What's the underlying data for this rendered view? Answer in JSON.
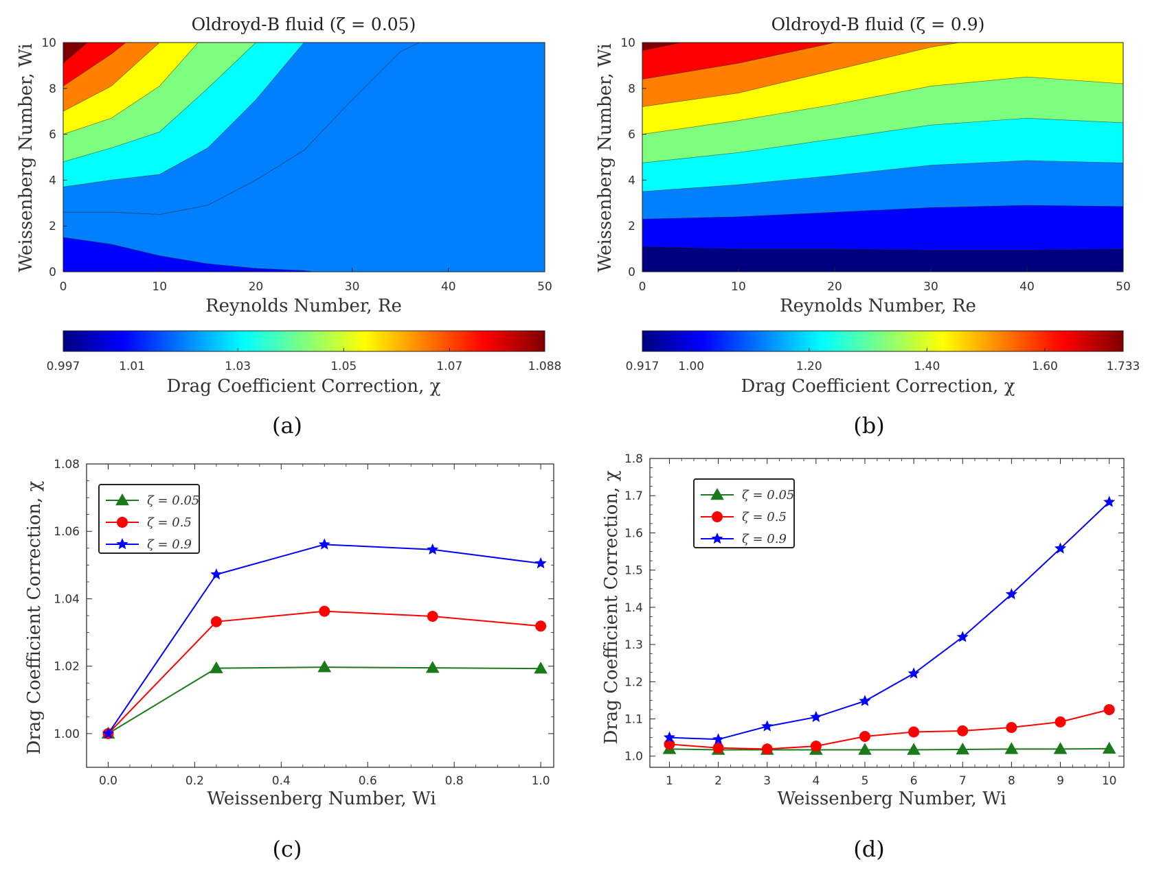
{
  "panel_labels": {
    "a": "(a)",
    "b": "(b)",
    "c": "(c)",
    "d": "(d)"
  },
  "colormap": [
    "#00007f",
    "#0000ff",
    "#007fff",
    "#00ffff",
    "#7fff7f",
    "#ffff00",
    "#ff7f00",
    "#ff0000",
    "#7f0000"
  ],
  "chart_data": [
    {
      "id": "a",
      "type": "contour",
      "title": "Oldroyd-B fluid (ζ = 0.05)",
      "xlabel": "Reynolds Number, Re",
      "ylabel": "Weissenberg Number, Wi",
      "xlim": [
        0,
        50
      ],
      "ylim": [
        0,
        10
      ],
      "xticks": [
        "0",
        "10",
        "20",
        "30",
        "40",
        "50"
      ],
      "yticks": [
        "0",
        "2",
        "4",
        "6",
        "8",
        "10"
      ],
      "background_level": 2,
      "contour_boundaries": [
        {
          "level": 0,
          "points": [
            [
              0,
              0.35
            ],
            [
              5,
              0.1
            ],
            [
              10,
              0
            ]
          ]
        },
        {
          "level": 1,
          "points": [
            [
              0,
              1.5
            ],
            [
              5,
              1.2
            ],
            [
              10,
              0.7
            ],
            [
              15,
              0.35
            ],
            [
              20,
              0.15
            ],
            [
              25,
              0.05
            ],
            [
              26,
              0
            ]
          ]
        },
        {
          "level": 3,
          "points": [
            [
              0,
              3.7
            ],
            [
              5,
              4.0
            ],
            [
              10,
              4.25
            ],
            [
              15,
              5.4
            ],
            [
              20,
              7.5
            ],
            [
              25,
              10
            ]
          ]
        },
        {
          "level": 4,
          "points": [
            [
              0,
              4.8
            ],
            [
              5,
              5.4
            ],
            [
              10,
              6.1
            ],
            [
              15,
              8.0
            ],
            [
              20,
              10
            ]
          ]
        },
        {
          "level": 5,
          "points": [
            [
              0,
              6.0
            ],
            [
              5,
              6.7
            ],
            [
              10,
              8.1
            ],
            [
              14,
              10
            ]
          ]
        },
        {
          "level": 6,
          "points": [
            [
              0,
              7.0
            ],
            [
              5,
              8.1
            ],
            [
              10,
              10
            ]
          ]
        },
        {
          "level": 7,
          "points": [
            [
              0,
              8.1
            ],
            [
              5,
              9.5
            ],
            [
              6.5,
              10
            ]
          ]
        },
        {
          "level": 8,
          "points": [
            [
              0,
              9.1
            ],
            [
              2.5,
              10
            ]
          ]
        }
      ],
      "contour_lines": [
        [
          [
            0,
            2.6
          ],
          [
            5,
            2.6
          ],
          [
            10,
            2.5
          ],
          [
            15,
            2.9
          ],
          [
            20,
            4.0
          ],
          [
            25,
            5.3
          ],
          [
            30,
            7.5
          ],
          [
            35,
            9.6
          ],
          [
            37,
            10
          ]
        ]
      ],
      "colorbar": {
        "label": "Drag Coefficient Correction, χ",
        "range": [
          0.997,
          1.088
        ],
        "ticks": [
          {
            "value": 0.997,
            "label": "0.997"
          },
          {
            "value": 1.01,
            "label": "1.01"
          },
          {
            "value": 1.03,
            "label": "1.03"
          },
          {
            "value": 1.05,
            "label": "1.05"
          },
          {
            "value": 1.07,
            "label": "1.07"
          },
          {
            "value": 1.088,
            "label": "1.088"
          }
        ]
      }
    },
    {
      "id": "b",
      "type": "contour",
      "title": "Oldroyd-B fluid (ζ = 0.9)",
      "xlabel": "Reynolds Number, Re",
      "ylabel": "Weissenberg Number, Wi",
      "xlim": [
        0,
        50
      ],
      "ylim": [
        0,
        10
      ],
      "xticks": [
        "0",
        "10",
        "20",
        "30",
        "40",
        "50"
      ],
      "yticks": [
        "0",
        "2",
        "4",
        "6",
        "8",
        "10"
      ],
      "background_level": 0,
      "contour_boundaries": [
        {
          "level": 1,
          "points": [
            [
              0,
              1.1
            ],
            [
              10,
              1.0
            ],
            [
              20,
              1.0
            ],
            [
              30,
              0.95
            ],
            [
              40,
              0.95
            ],
            [
              50,
              1.0
            ]
          ]
        },
        {
          "level": 2,
          "points": [
            [
              0,
              2.3
            ],
            [
              10,
              2.4
            ],
            [
              20,
              2.6
            ],
            [
              30,
              2.8
            ],
            [
              40,
              2.9
            ],
            [
              50,
              2.85
            ]
          ]
        },
        {
          "level": 3,
          "points": [
            [
              0,
              3.5
            ],
            [
              10,
              3.8
            ],
            [
              20,
              4.2
            ],
            [
              30,
              4.65
            ],
            [
              40,
              4.85
            ],
            [
              50,
              4.75
            ]
          ]
        },
        {
          "level": 4,
          "points": [
            [
              0,
              4.75
            ],
            [
              10,
              5.2
            ],
            [
              20,
              5.8
            ],
            [
              30,
              6.4
            ],
            [
              40,
              6.7
            ],
            [
              50,
              6.5
            ]
          ]
        },
        {
          "level": 5,
          "points": [
            [
              0,
              6.0
            ],
            [
              10,
              6.6
            ],
            [
              20,
              7.3
            ],
            [
              30,
              8.1
            ],
            [
              40,
              8.5
            ],
            [
              50,
              8.2
            ]
          ]
        },
        {
          "level": 6,
          "points": [
            [
              0,
              7.2
            ],
            [
              10,
              7.8
            ],
            [
              20,
              8.8
            ],
            [
              30,
              9.8
            ],
            [
              33,
              10
            ]
          ]
        },
        {
          "level": 7,
          "points": [
            [
              0,
              8.4
            ],
            [
              10,
              9.1
            ],
            [
              20,
              10
            ]
          ]
        },
        {
          "level": 8,
          "points": [
            [
              0,
              9.65
            ],
            [
              4,
              10
            ]
          ]
        }
      ],
      "contour_lines": [],
      "colorbar": {
        "label": "Drag Coefficient Correction, χ",
        "range": [
          0.917,
          1.733
        ],
        "ticks": [
          {
            "value": 0.917,
            "label": "0.917"
          },
          {
            "value": 1.0,
            "label": "1.00"
          },
          {
            "value": 1.2,
            "label": "1.20"
          },
          {
            "value": 1.4,
            "label": "1.40"
          },
          {
            "value": 1.6,
            "label": "1.60"
          },
          {
            "value": 1.733,
            "label": "1.733"
          }
        ]
      }
    },
    {
      "id": "c",
      "type": "line",
      "xlabel": "Weissenberg Number, Wi",
      "ylabel": "Drag Coefficient Correction, χ",
      "xlim": [
        -0.05,
        1.03
      ],
      "ylim": [
        0.99,
        1.08
      ],
      "xticks": [
        0.0,
        0.2,
        0.4,
        0.6,
        0.8,
        1.0
      ],
      "xticklabels": [
        "0.0",
        "0.2",
        "0.4",
        "0.6",
        "0.8",
        "1.0"
      ],
      "yticks": [
        1.0,
        1.02,
        1.04,
        1.06,
        1.08
      ],
      "yticklabels": [
        "1.00",
        "1.02",
        "1.04",
        "1.06",
        "1.08"
      ],
      "legend_position": "top-left",
      "x": [
        0.0,
        0.25,
        0.5,
        0.75,
        1.0
      ],
      "series": [
        {
          "name": "ζ = 0.05",
          "color": "#1a7a1a",
          "marker": "triangle",
          "values": [
            1.0,
            1.0194,
            1.0197,
            1.0195,
            1.0193
          ]
        },
        {
          "name": "ζ = 0.5",
          "color": "#ff0000",
          "marker": "circle",
          "values": [
            1.0,
            1.0332,
            1.0363,
            1.0348,
            1.0319
          ]
        },
        {
          "name": "ζ = 0.9",
          "color": "#0000ff",
          "marker": "star",
          "values": [
            1.0,
            1.0472,
            1.0561,
            1.0546,
            1.0505
          ]
        }
      ]
    },
    {
      "id": "d",
      "type": "line",
      "xlabel": "Weissenberg Number, Wi",
      "ylabel": "Drag Coefficient Correction, χ",
      "xlim": [
        0.6,
        10.3
      ],
      "ylim": [
        0.97,
        1.8
      ],
      "xticks": [
        1,
        2,
        3,
        4,
        5,
        6,
        7,
        8,
        9,
        10
      ],
      "xticklabels": [
        "1",
        "2",
        "3",
        "4",
        "5",
        "6",
        "7",
        "8",
        "9",
        "10"
      ],
      "yticks": [
        1.0,
        1.1,
        1.2,
        1.3,
        1.4,
        1.5,
        1.6,
        1.7,
        1.8
      ],
      "yticklabels": [
        "1.0",
        "1.1",
        "1.2",
        "1.3",
        "1.4",
        "1.5",
        "1.6",
        "1.7",
        "1.8"
      ],
      "legend_position": "top-left",
      "x": [
        1,
        2,
        3,
        4,
        5,
        6,
        7,
        8,
        9,
        10
      ],
      "series": [
        {
          "name": "ζ = 0.05",
          "color": "#1a7a1a",
          "marker": "triangle",
          "values": [
            1.019,
            1.017,
            1.017,
            1.017,
            1.017,
            1.017,
            1.018,
            1.019,
            1.019,
            1.02
          ]
        },
        {
          "name": "ζ = 0.5",
          "color": "#ff0000",
          "marker": "circle",
          "values": [
            1.032,
            1.022,
            1.019,
            1.027,
            1.053,
            1.065,
            1.068,
            1.077,
            1.092,
            1.125
          ]
        },
        {
          "name": "ζ = 0.9",
          "color": "#0000ff",
          "marker": "star",
          "values": [
            1.05,
            1.045,
            1.08,
            1.105,
            1.148,
            1.222,
            1.32,
            1.435,
            1.558,
            1.683
          ]
        }
      ]
    }
  ]
}
